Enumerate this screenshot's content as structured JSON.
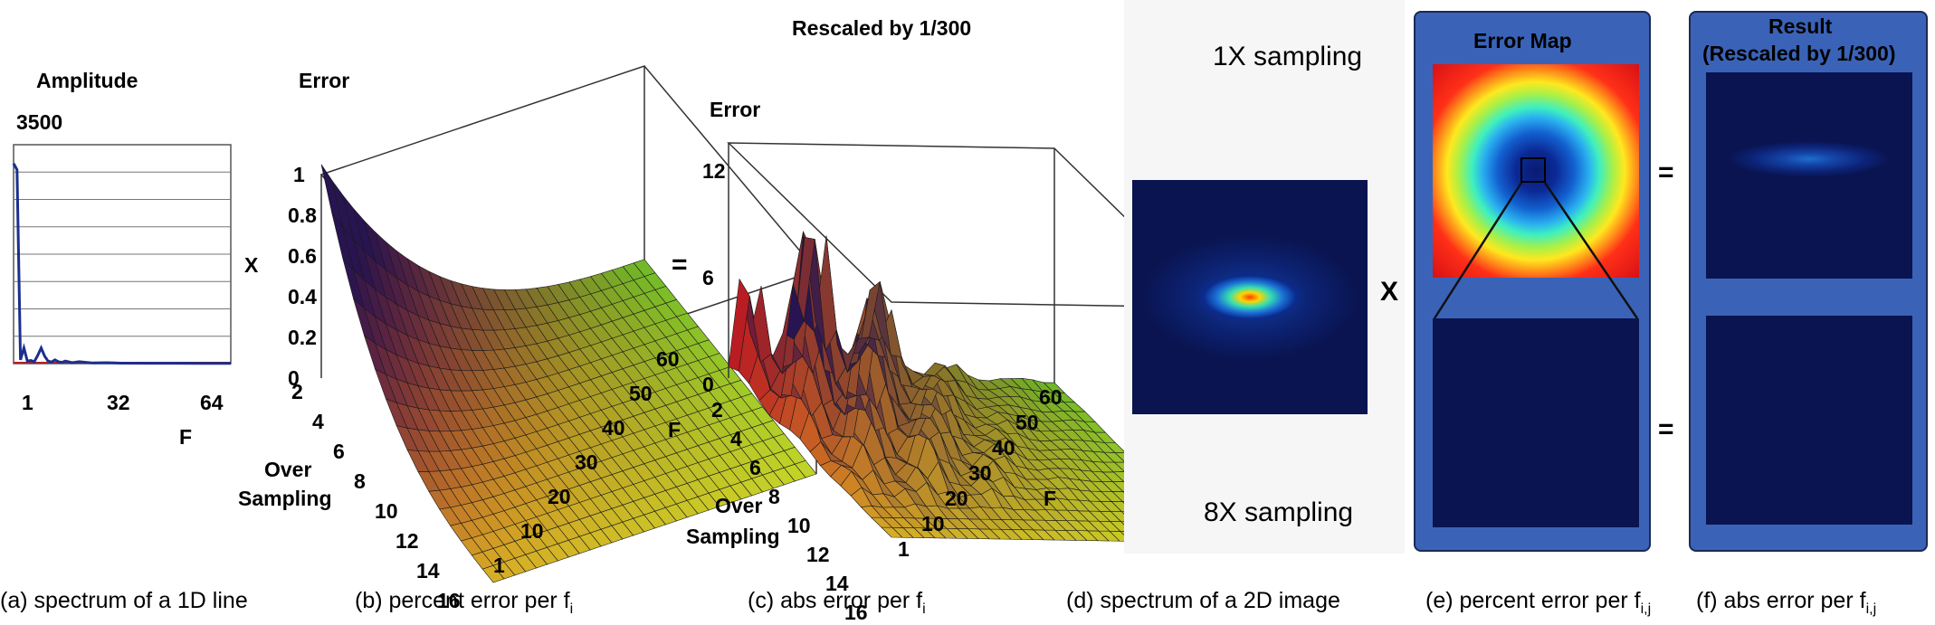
{
  "panel_a": {
    "title": "Amplitude",
    "ymax_label": "3500",
    "xticks": [
      "1",
      "32",
      "64"
    ],
    "xlabel": "F",
    "caption_text": "(a) spectrum of a 1D line"
  },
  "panel_b": {
    "zlabel": "Error",
    "zticks": [
      "1",
      "0.8",
      "0.6",
      "0.4",
      "0.2",
      "0"
    ],
    "os_ticks": [
      "2",
      "4",
      "6",
      "8",
      "10",
      "12",
      "14",
      "16"
    ],
    "os_label_1": "Over",
    "os_label_2": "Sampling",
    "f_ticks": [
      "1",
      "10",
      "20",
      "30",
      "40",
      "50",
      "60"
    ],
    "f_label": "F",
    "caption_text": "(b) percent error per f",
    "caption_sub": "i"
  },
  "panel_c": {
    "top_label": "Rescaled by 1/300",
    "zlabel": "Error",
    "zticks": [
      "12",
      "6",
      "0"
    ],
    "os_ticks": [
      "2",
      "4",
      "6",
      "8",
      "10",
      "12",
      "14",
      "16"
    ],
    "os_label_1": "Over",
    "os_label_2": "Sampling",
    "f_ticks": [
      "1",
      "10",
      "20",
      "30",
      "40",
      "50",
      "60"
    ],
    "f_label": "F",
    "caption_text": "(c) abs error per f",
    "caption_sub": "i"
  },
  "panel_d": {
    "top_label": "1X sampling",
    "bottom_label": "8X sampling",
    "caption_text": "(d) spectrum of a 2D image"
  },
  "panel_e": {
    "title": "Error Map",
    "caption_text": "(e) percent error per f",
    "caption_sub": "i,j"
  },
  "panel_f": {
    "title_1": "Result",
    "title_2": "(Rescaled by 1/300)",
    "caption_text": "(f) abs error per f",
    "caption_sub": "i,j"
  },
  "operators": {
    "x_between_bc": "X",
    "eq_between_bc": "=",
    "x_between_de": "X",
    "eq_upper_ef": "=",
    "eq_lower_ef": "="
  },
  "colors": {
    "panel_frame_blue": "#3a63b8",
    "dark_navy": "#0a1450",
    "line_series_a": "#1b2f8f",
    "line_baseline_a": "#b22222"
  },
  "chart_data": [
    {
      "type": "line",
      "title": "Amplitude",
      "xlabel": "F",
      "ylabel": "",
      "x_ticks": [
        1,
        32,
        64
      ],
      "ylim": [
        0,
        3500
      ],
      "xlim": [
        1,
        64
      ],
      "grid": true,
      "series": [
        {
          "x": [
            1,
            2,
            3,
            4,
            5,
            6,
            7,
            8,
            9,
            10,
            11,
            12,
            13,
            14,
            15,
            16,
            18,
            20,
            24,
            28,
            32,
            40,
            48,
            56,
            64
          ],
          "values": [
            3200,
            3100,
            60,
            250,
            40,
            50,
            30,
            130,
            250,
            120,
            40,
            25,
            60,
            30,
            20,
            40,
            15,
            30,
            10,
            15,
            8,
            6,
            5,
            4,
            3
          ]
        },
        {
          "x": [
            1,
            64
          ],
          "values": [
            0,
            0
          ]
        }
      ]
    },
    {
      "type": "surface",
      "zlabel": "Error",
      "z_ticks": [
        0,
        0.2,
        0.4,
        0.6,
        0.8,
        1
      ],
      "x_label": "Over Sampling",
      "x_ticks": [
        2,
        4,
        6,
        8,
        10,
        12,
        14,
        16
      ],
      "y_label": "F",
      "y_ticks": [
        1,
        10,
        20,
        30,
        40,
        50,
        60
      ],
      "zlim": [
        0,
        1
      ]
    },
    {
      "type": "surface",
      "title": "Rescaled by 1/300",
      "zlabel": "Error",
      "z_ticks": [
        0,
        6,
        12
      ],
      "x_label": "Over Sampling",
      "x_ticks": [
        2,
        4,
        6,
        8,
        10,
        12,
        14,
        16
      ],
      "y_label": "F",
      "y_ticks": [
        1,
        10,
        20,
        30,
        40,
        50,
        60
      ],
      "zlim": [
        0,
        12
      ]
    }
  ]
}
